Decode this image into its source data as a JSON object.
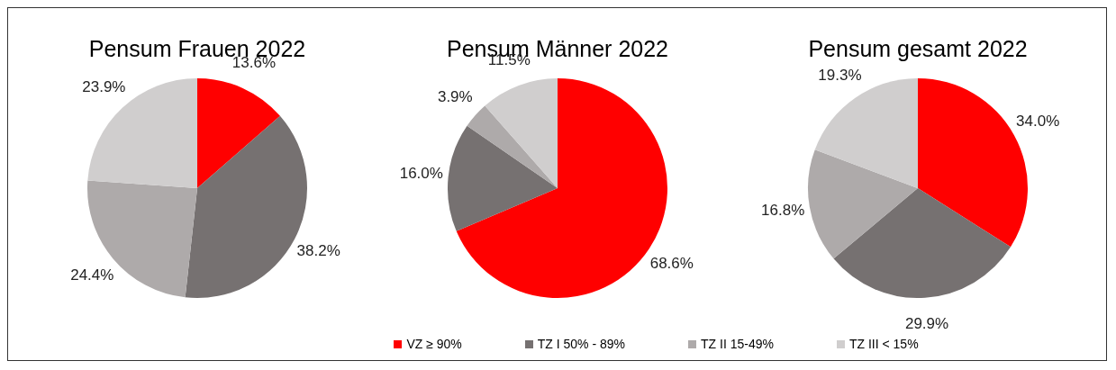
{
  "chart_data": [
    {
      "type": "pie",
      "title": "Pensum Frauen 2022",
      "categories": [
        "VZ ≥ 90%",
        "TZ I 50% - 89%",
        "TZ II 15-49%",
        "TZ III < 15%"
      ],
      "values": [
        13.6,
        38.2,
        24.4,
        23.9
      ],
      "colors": [
        "#ff0000",
        "#767171",
        "#aeaaaa",
        "#d0cece"
      ],
      "value_labels": [
        "13.6%",
        "38.2%",
        "24.4%",
        "23.9%"
      ],
      "legend": "bottom"
    },
    {
      "type": "pie",
      "title": "Pensum Männer 2022",
      "categories": [
        null,
        null,
        null,
        null
      ],
      "values": [
        68.6,
        16.0,
        3.9,
        11.5
      ],
      "colors": [
        "#ff0000",
        "#767171",
        "#aeaaaa",
        "#d0cece"
      ],
      "value_labels": [
        "68.6%",
        "16.0%",
        "3.9%",
        "11.5%"
      ]
    },
    {
      "type": "pie",
      "title": "Pensum gesamt 2022",
      "categories": [
        null,
        null,
        null,
        null
      ],
      "values": [
        34.0,
        29.9,
        16.8,
        19.3
      ],
      "colors": [
        "#ff0000",
        "#767171",
        "#aeaaaa",
        "#d0cece"
      ],
      "value_labels": [
        "34.0%",
        "29.9%",
        "16.8%",
        "19.3%"
      ]
    }
  ]
}
